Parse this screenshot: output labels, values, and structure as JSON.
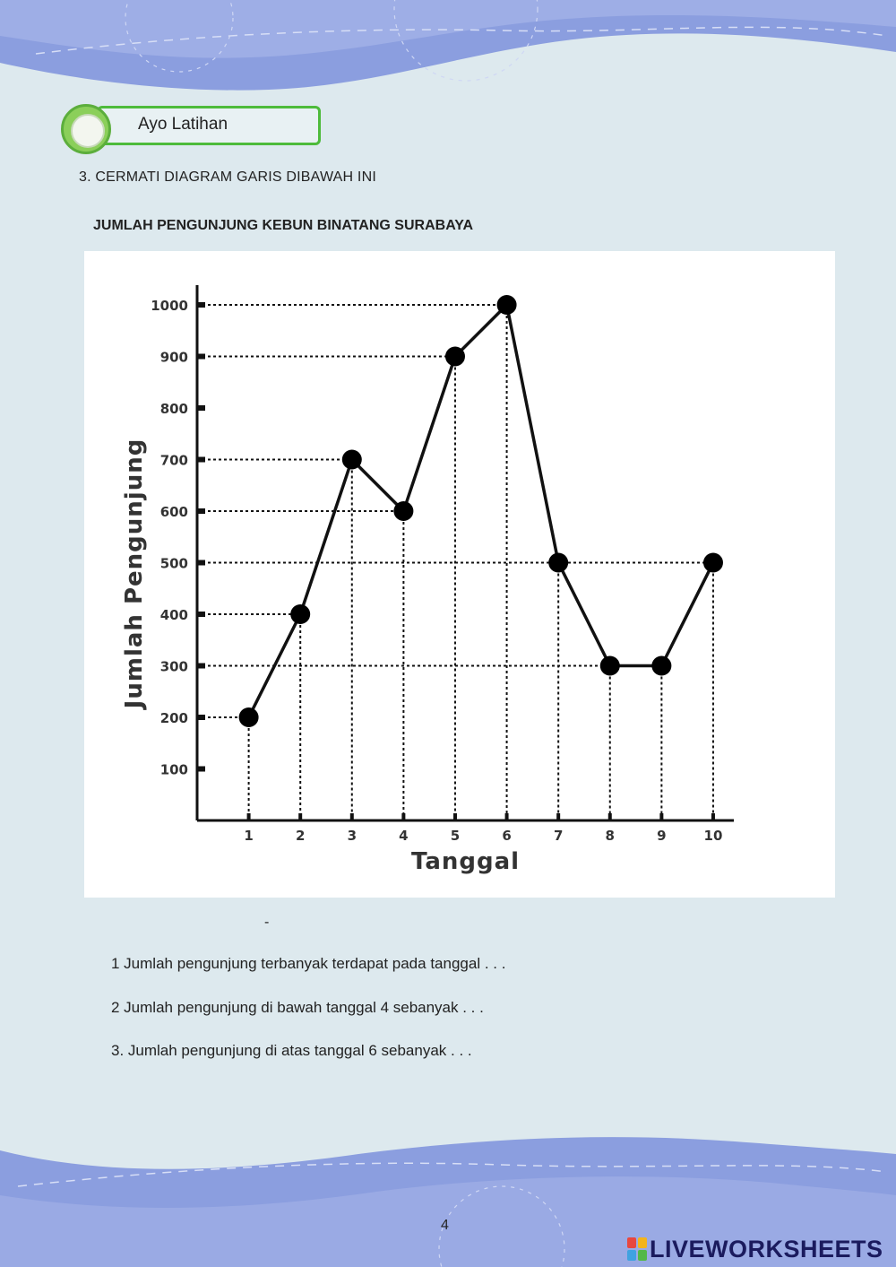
{
  "badge": {
    "label": "Ayo Latihan"
  },
  "instruction": "3.   CERMATI DIAGRAM GARIS DIBAWAH INI",
  "chart_title": "JUMLAH PENGUNJUNG KEBUN BINATANG SURABAYA",
  "chart_data": {
    "type": "line",
    "title": "JUMLAH PENGUNJUNG KEBUN BINATANG SURABAYA",
    "xlabel": "Tanggal",
    "ylabel": "Jumlah Pengunjung",
    "x": [
      1,
      2,
      3,
      4,
      5,
      6,
      7,
      8,
      9,
      10
    ],
    "y": [
      200,
      400,
      700,
      600,
      900,
      1000,
      500,
      300,
      300,
      500
    ],
    "x_tick_labels": [
      "1",
      "2",
      "3",
      "4",
      "5",
      "6",
      "7",
      "8",
      "9",
      "10"
    ],
    "y_ticks": [
      100,
      200,
      300,
      400,
      500,
      600,
      700,
      800,
      900,
      1000
    ],
    "y_tick_labels": [
      "100",
      "200",
      "300",
      "400",
      "500",
      "600",
      "700",
      "800",
      "900",
      "1000"
    ],
    "xlim": [
      0,
      10.4
    ],
    "ylim": [
      0,
      1000
    ],
    "grid": "dotted guide lines from each point to both axes",
    "line_color": "#111111"
  },
  "dash_mark": "-",
  "questions": [
    "1  Jumlah  pengunjung terbanyak terdapat pada tanggal . . .",
    "2     Jumlah pengunjung di bawah tanggal 4 sebanyak . . .",
    "3.   Jumlah pengunjung di atas tanggal  6 sebanyak . . ."
  ],
  "page_number": "4",
  "watermark": {
    "text": "LIVEWORKSHEETS"
  },
  "colors": {
    "background": "#dde9ee",
    "wave": "#8b9edf",
    "wave_light": "#b7c4ee",
    "badge_border": "#4dbb3b",
    "logo_text": "#1b1b5e"
  }
}
